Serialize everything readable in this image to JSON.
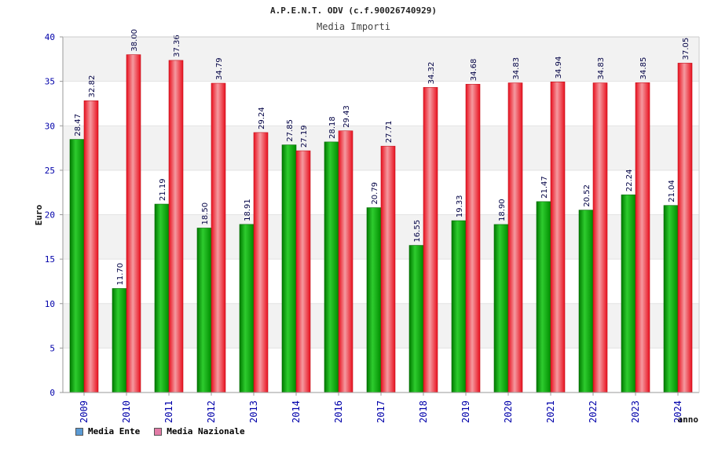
{
  "chart_data": {
    "type": "bar",
    "title": "A.P.E.N.T. ODV (c.f.90026740929)",
    "subtitle": "Media Importi",
    "xlabel": "anno",
    "ylabel": "Euro",
    "ylim": [
      0,
      40
    ],
    "yticks": [
      0,
      5,
      10,
      15,
      20,
      25,
      30,
      35,
      40
    ],
    "categories": [
      "2009",
      "2010",
      "2011",
      "2012",
      "2013",
      "2014",
      "2016",
      "2017",
      "2018",
      "2019",
      "2020",
      "2021",
      "2022",
      "2023",
      "2024"
    ],
    "series": [
      {
        "name": "Media Ente",
        "values": [
          28.47,
          11.7,
          21.19,
          18.5,
          18.91,
          27.85,
          28.18,
          20.79,
          16.55,
          19.33,
          18.9,
          21.47,
          20.52,
          22.24,
          21.04
        ],
        "labels": [
          "28.47",
          "11.70",
          "21.19",
          "18.50",
          "18.91",
          "27.85",
          "28.18",
          "20.79",
          "16.55",
          "19.33",
          "18.90",
          "21.47",
          "20.52",
          "22.24",
          "21.04"
        ]
      },
      {
        "name": "Media Nazionale",
        "values": [
          32.82,
          38.0,
          37.36,
          34.79,
          29.24,
          27.19,
          29.43,
          27.71,
          34.32,
          34.68,
          34.83,
          34.94,
          34.83,
          34.85,
          37.05
        ],
        "labels": [
          "32.82",
          "38.00",
          "37.36",
          "34.79",
          "29.24",
          "27.19",
          "29.43",
          "27.71",
          "34.32",
          "34.68",
          "34.83",
          "34.94",
          "34.83",
          "34.85",
          "37.05"
        ]
      }
    ],
    "grid": true,
    "legend_position": "bottom-left",
    "colors": {
      "ente": "#1fbf1f",
      "nazionale": "#ee2b36",
      "tick_label": "#0000aa",
      "band": "#f2f2f2",
      "legend_ente": "#5b9bd5",
      "legend_nazionale": "#e27ba6"
    }
  },
  "legend": {
    "ente_label": "Media Ente",
    "nazionale_label": "Media Nazionale"
  }
}
